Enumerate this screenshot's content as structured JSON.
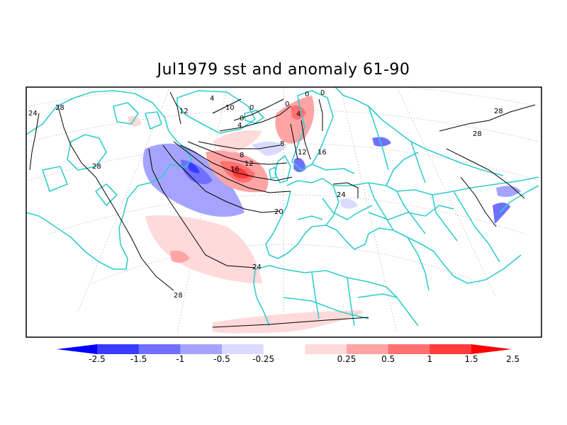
{
  "title": "Jul1979 sst and anomaly 61-90",
  "map": {
    "region": "North Atlantic / Europe",
    "projection": "polar stereographic",
    "coastline_color": "#33cccc",
    "contour_color": "#000000",
    "contour_labels": [
      "24",
      "28",
      "28",
      "28",
      "28",
      "12",
      "4",
      "10",
      "0",
      "0",
      "4",
      "0",
      "4",
      "8",
      "8",
      "12",
      "16",
      "16",
      "12",
      "20",
      "24",
      "24",
      "28",
      "0",
      "0"
    ]
  },
  "colorbar": {
    "labels": [
      "-2.5",
      "-1.5",
      "-1",
      "-0.5",
      "-0.25",
      "0.25",
      "0.5",
      "1",
      "1.5",
      "2.5"
    ],
    "colors": [
      "#0000ff",
      "#3b3bff",
      "#7070ff",
      "#a4a4ff",
      "#dadaff",
      "#ffffff",
      "#ffdada",
      "#ffa4a4",
      "#ff7070",
      "#ff3b3b",
      "#ff0000"
    ]
  }
}
